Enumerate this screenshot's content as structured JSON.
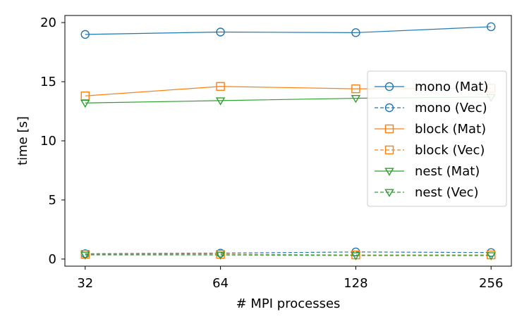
{
  "chart_data": {
    "type": "line",
    "xlabel": "# MPI processes",
    "ylabel": "time [s]",
    "x_scale": "log2",
    "x": [
      32,
      64,
      128,
      256
    ],
    "x_tick_labels": [
      "32",
      "64",
      "128",
      "256"
    ],
    "ylim": [
      -0.6,
      20.6
    ],
    "y_ticks": [
      0,
      5,
      10,
      15,
      20
    ],
    "y_tick_labels": [
      "0",
      "5",
      "10",
      "15",
      "20"
    ],
    "grid": false,
    "legend_position": "center-right",
    "series": [
      {
        "name": "mono (Mat)",
        "color": "#1f77b4",
        "marker": "circle",
        "line": "solid",
        "values": [
          19.0,
          19.2,
          19.15,
          19.65
        ]
      },
      {
        "name": "mono (Vec)",
        "color": "#1f77b4",
        "marker": "circle",
        "line": "dashed",
        "values": [
          0.45,
          0.5,
          0.6,
          0.55
        ]
      },
      {
        "name": "block (Mat)",
        "color": "#ff7f0e",
        "marker": "square",
        "line": "solid",
        "values": [
          13.8,
          14.6,
          14.4,
          14.45
        ]
      },
      {
        "name": "block (Vec)",
        "color": "#ff7f0e",
        "marker": "square",
        "line": "dashed",
        "values": [
          0.4,
          0.4,
          0.35,
          0.35
        ]
      },
      {
        "name": "nest (Mat)",
        "color": "#2ca02c",
        "marker": "triangle-down",
        "line": "solid",
        "values": [
          13.2,
          13.4,
          13.6,
          13.7
        ]
      },
      {
        "name": "nest (Vec)",
        "color": "#2ca02c",
        "marker": "triangle-down",
        "line": "dashed",
        "values": [
          0.35,
          0.35,
          0.3,
          0.3
        ]
      }
    ]
  }
}
